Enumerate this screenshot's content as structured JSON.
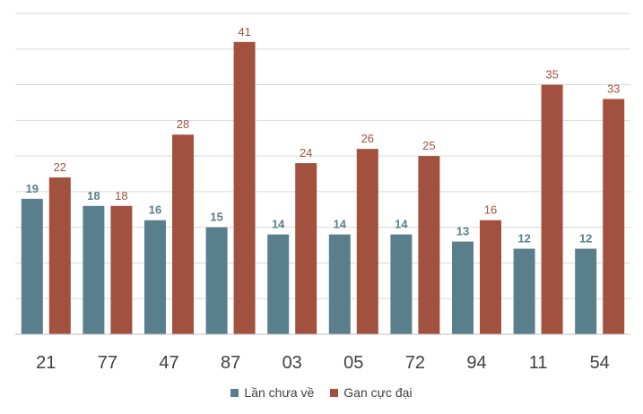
{
  "chart_data": {
    "type": "bar",
    "title": "",
    "xlabel": "",
    "ylabel": "",
    "ylim": [
      0,
      45
    ],
    "gridlines": true,
    "categories": [
      "21",
      "77",
      "47",
      "87",
      "03",
      "05",
      "72",
      "94",
      "11",
      "54"
    ],
    "series": [
      {
        "name": "Lần chưa về",
        "color": "#597f8c",
        "values": [
          19,
          18,
          16,
          15,
          14,
          14,
          14,
          13,
          12,
          12
        ]
      },
      {
        "name": "Gan cực đại",
        "color": "#a3513f",
        "values": [
          22,
          18,
          28,
          41,
          24,
          26,
          25,
          16,
          35,
          33
        ]
      }
    ],
    "legend_position": "bottom"
  }
}
